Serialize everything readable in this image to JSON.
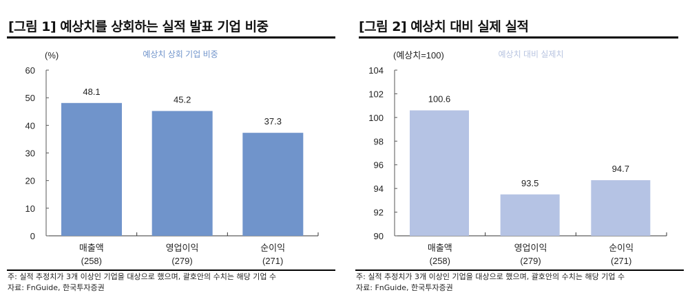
{
  "chart_data": [
    {
      "type": "bar",
      "title": "[그림 1] 예상치를 상회하는 실적 발표 기업 비중",
      "series_label": "예상치 상회 기업 비중",
      "unit_label": "(%)",
      "categories": [
        "매출액",
        "영업이익",
        "순이익"
      ],
      "category_counts": [
        "(258)",
        "(279)",
        "(271)"
      ],
      "values": [
        48.1,
        45.2,
        37.3
      ],
      "value_labels": [
        "48.1",
        "45.2",
        "37.3"
      ],
      "ylim": [
        0,
        60
      ],
      "yticks": [
        0,
        10,
        20,
        30,
        40,
        50,
        60
      ],
      "color": "#7094cb",
      "series_label_color": "#7094cb",
      "grid": false,
      "note": "주: 실적 추정치가 3개 이상인 기업을 대상으로 했으며, 괄호안의 수치는 해당 기업 수",
      "source": "자료: FnGuide, 한국투자증권"
    },
    {
      "type": "bar",
      "title": "[그림 2] 예상치 대비 실제 실적",
      "series_label": "예상치 대비 실제치",
      "unit_label": "(예상치=100)",
      "categories": [
        "매출액",
        "영업이익",
        "순이익"
      ],
      "category_counts": [
        "(258)",
        "(279)",
        "(271)"
      ],
      "values": [
        100.6,
        93.5,
        94.7
      ],
      "value_labels": [
        "100.6",
        "93.5",
        "94.7"
      ],
      "ylim": [
        90,
        104
      ],
      "yticks": [
        90,
        92,
        94,
        96,
        98,
        100,
        102,
        104
      ],
      "color": "#b5c3e4",
      "series_label_color": "#b8c4e0",
      "grid": false,
      "note": "주: 실적 추정치가 3개 이상인 기업을 대상으로 했으며, 괄호안의 수치는 해당 기업 수",
      "source": "자료: FnGuide, 한국투자증권"
    }
  ]
}
